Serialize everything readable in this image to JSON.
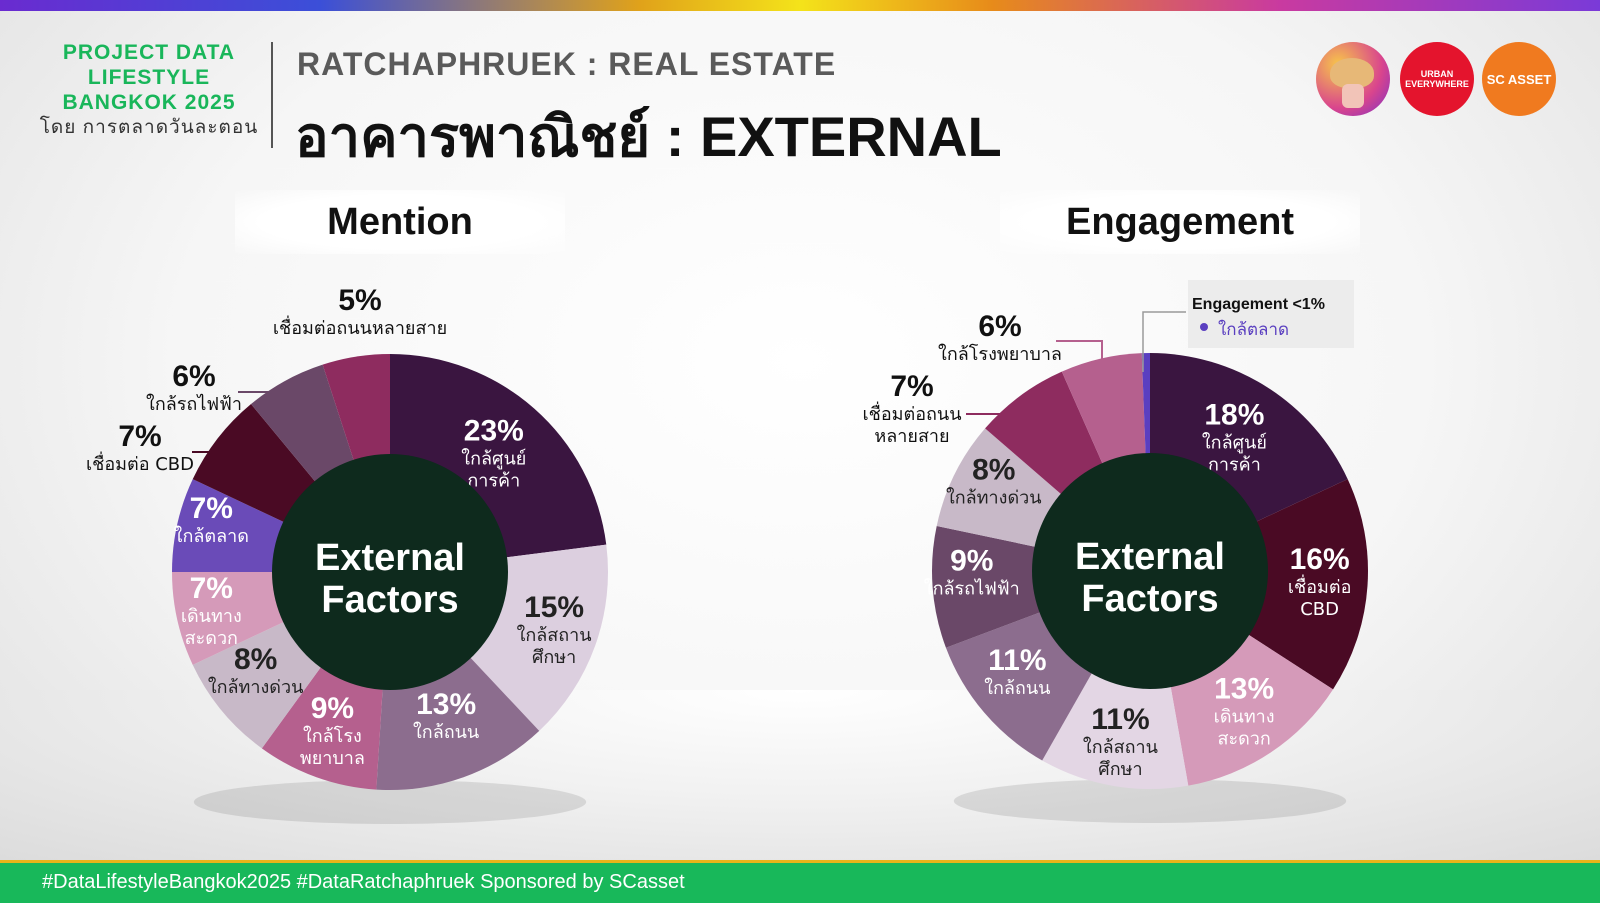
{
  "header": {
    "brand_line1": "PROJECT DATA",
    "brand_line2": "LIFESTYLE",
    "brand_line3": "BANGKOK 2025",
    "brand_by": "โดย การตลาดวันละตอน",
    "subtitle": "RATCHAPHRUEK : REAL ESTATE",
    "title": "อาคารพาณิชย์ : EXTERNAL"
  },
  "logos": {
    "urban": "URBAN EVERYWHERE",
    "scasset": "SC ASSET"
  },
  "colors": {
    "brand_green": "#19b65a",
    "center_circle": "#0e2a1d",
    "footer_green": "#18b85a"
  },
  "chart_data": [
    {
      "type": "pie",
      "title": "Mention",
      "center_label": [
        "External",
        "Factors"
      ],
      "slices": [
        {
          "label": "ใกล้ศูนย์การค้า",
          "label_lines": [
            "ใกล้ศูนย์",
            "การค้า"
          ],
          "pct_text": "23%",
          "value": 23,
          "color": "#3a1540"
        },
        {
          "label": "ใกล้สถานศึกษา",
          "label_lines": [
            "ใกล้สถาน",
            "ศึกษา"
          ],
          "pct_text": "15%",
          "value": 15,
          "color": "#dccfdf"
        },
        {
          "label": "ใกล้ถนน",
          "label_lines": [
            "ใกล้ถนน"
          ],
          "pct_text": "13%",
          "value": 13,
          "color": "#8c6d8e"
        },
        {
          "label": "ใกล้โรงพยาบาล",
          "label_lines": [
            "ใกล้โรง",
            "พยาบาล"
          ],
          "pct_text": "9%",
          "value": 9,
          "color": "#b5608e"
        },
        {
          "label": "ใกล้ทางด่วน",
          "label_lines": [
            "ใกล้ทางด่วน"
          ],
          "pct_text": "8%",
          "value": 8,
          "color": "#c8b9c8"
        },
        {
          "label": "เดินทางสะดวก",
          "label_lines": [
            "เดินทาง",
            "สะดวก"
          ],
          "pct_text": "7%",
          "value": 7,
          "color": "#d59ab9"
        },
        {
          "label": "ใกล้ตลาด",
          "label_lines": [
            "ใกล้ตลาด"
          ],
          "pct_text": "7%",
          "value": 7,
          "color": "#6a4bb8"
        },
        {
          "label": "เชื่อมต่อ CBD",
          "label_lines": [
            "เชื่อมต่อ CBD"
          ],
          "pct_text": "7%",
          "value": 7,
          "color": "#4a0a24"
        },
        {
          "label": "ใกล้รถไฟฟ้า",
          "label_lines": [
            "ใกล้รถไฟฟ้า"
          ],
          "pct_text": "6%",
          "value": 6,
          "color": "#6a4868"
        },
        {
          "label": "เชื่อมต่อถนนหลายสาย",
          "label_lines": [
            "เชื่อมต่อถนนหลายสาย"
          ],
          "pct_text": "5%",
          "value": 5,
          "color": "#8e2c5f"
        }
      ]
    },
    {
      "type": "pie",
      "title": "Engagement",
      "center_label": [
        "External",
        "Factors"
      ],
      "slices": [
        {
          "label": "ใกล้ศูนย์การค้า",
          "label_lines": [
            "ใกล้ศูนย์",
            "การค้า"
          ],
          "pct_text": "18%",
          "value": 18,
          "color": "#3a1540"
        },
        {
          "label": "เชื่อมต่อ CBD",
          "label_lines": [
            "เชื่อมต่อ",
            "CBD"
          ],
          "pct_text": "16%",
          "value": 16,
          "color": "#4a0a24"
        },
        {
          "label": "เดินทางสะดวก",
          "label_lines": [
            "เดินทาง",
            "สะดวก"
          ],
          "pct_text": "13%",
          "value": 13,
          "color": "#d59ab9"
        },
        {
          "label": "ใกล้สถานศึกษา",
          "label_lines": [
            "ใกล้สถาน",
            "ศึกษา"
          ],
          "pct_text": "11%",
          "value": 11,
          "color": "#e3d6e4"
        },
        {
          "label": "ใกล้ถนน",
          "label_lines": [
            "ใกล้ถนน"
          ],
          "pct_text": "11%",
          "value": 11,
          "color": "#8c6d8e"
        },
        {
          "label": "ใกล้รถไฟฟ้า",
          "label_lines": [
            "ใกล้รถไฟฟ้า"
          ],
          "pct_text": "9%",
          "value": 9,
          "color": "#6a4868"
        },
        {
          "label": "ใกล้ทางด่วน",
          "label_lines": [
            "ใกล้ทางด่วน"
          ],
          "pct_text": "8%",
          "value": 8,
          "color": "#c8b9c8"
        },
        {
          "label": "เชื่อมต่อถนนหลายสาย",
          "label_lines": [
            "เชื่อมต่อถนน",
            "หลายสาย"
          ],
          "pct_text": "7%",
          "value": 7,
          "color": "#8e2c5f"
        },
        {
          "label": "ใกล้โรงพยาบาล",
          "label_lines": [
            "ใกล้โรงพยาบาล"
          ],
          "pct_text": "6%",
          "value": 6,
          "color": "#b5608e"
        },
        {
          "label": "ใกล้ตลาด",
          "label_lines": [],
          "pct_text": "",
          "value": 0.6,
          "color": "#5a3fc0"
        }
      ],
      "legend": {
        "title": "Engagement <1%",
        "items": [
          "ใกล้ตลาด"
        ]
      }
    }
  ],
  "footer": {
    "text": "#DataLifestyleBangkok2025 #DataRatchaphruek Sponsored by SCasset"
  }
}
